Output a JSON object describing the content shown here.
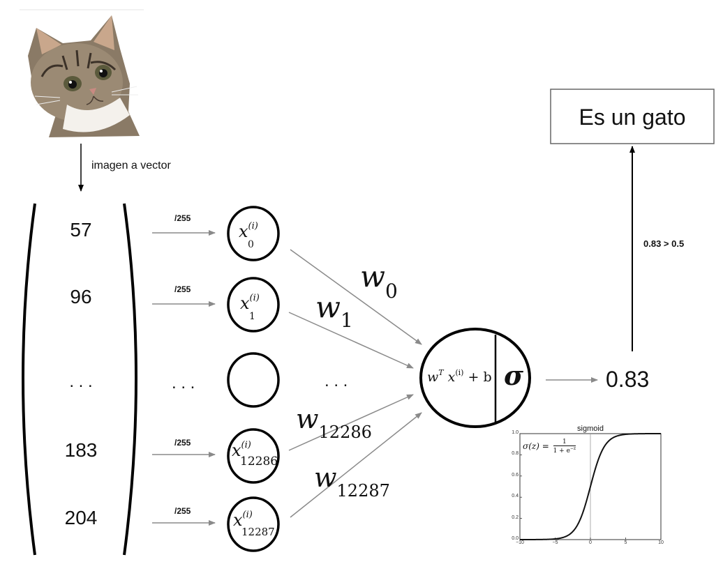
{
  "diagram": {
    "cat_image": {
      "icon": "kitten-photo"
    },
    "image_to_vector_label": "imagen a vector",
    "vector": {
      "values": [
        "57",
        "96",
        ". . .",
        "183",
        "204"
      ]
    },
    "normalize_labels": [
      "/255",
      "/255",
      "/255",
      "/255"
    ],
    "ellipsis_middle": ". . .",
    "ellipsis_weights": ". . .",
    "inputs": [
      {
        "base": "x",
        "sup": "(i)",
        "sub": "0"
      },
      {
        "base": "x",
        "sup": "(i)",
        "sub": "1"
      },
      {
        "base": "x",
        "sup": "(i)",
        "sub": "12286"
      },
      {
        "base": "x",
        "sup": "(i)",
        "sub": "12287"
      }
    ],
    "weights": [
      {
        "base": "w",
        "sub": "0"
      },
      {
        "base": "w",
        "sub": "1"
      },
      {
        "base": "w",
        "sub": "12286"
      },
      {
        "base": "w",
        "sub": "12287"
      }
    ],
    "neuron": {
      "linear": {
        "w": "w",
        "T": "T",
        "x": "x",
        "sup": "(i)",
        "plus_b": "+ b"
      },
      "activation": "σ"
    },
    "output_value": "0.83",
    "threshold_label": "0.83 > 0.5",
    "result_label": "Es un gato",
    "sigmoid_plot": {
      "title": "sigmoid",
      "formula": {
        "lhs": "σ(z) =",
        "num": "1",
        "den_pre": "1 + e",
        "den_exp": "−z"
      },
      "x_ticks": [
        "−10",
        "−5",
        "0",
        "5",
        "10"
      ],
      "y_ticks": [
        "0.0",
        "0.2",
        "0.4",
        "0.6",
        "0.8",
        "1.0"
      ],
      "xlim": [
        -10,
        10
      ],
      "ylim": [
        0,
        1
      ]
    }
  }
}
